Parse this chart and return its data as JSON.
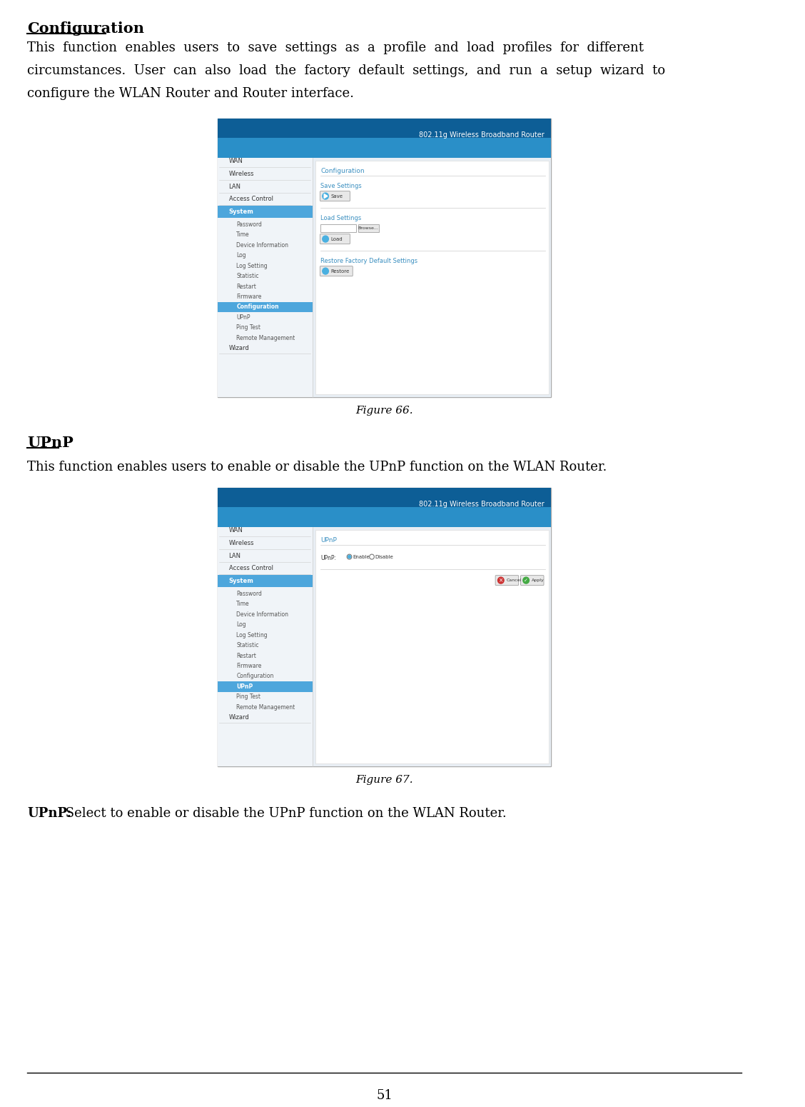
{
  "title": "Configuration",
  "para1_lines": [
    "This  function  enables  users  to  save  settings  as  a  profile  and  load  profiles  for  different",
    "circumstances.  User  can  also  load  the  factory  default  settings,  and  run  a  setup  wizard  to",
    "configure the WLAN Router and Router interface."
  ],
  "figure66_caption": "Figure 66.",
  "upnp_heading": "UPnP",
  "para2": "This function enables users to enable or disable the UPnP function on the WLAN Router.",
  "figure67_caption": "Figure 67.",
  "upnp_desc_bold": "UPnP:",
  "upnp_desc_rest": " Select to enable or disable the UPnP function on the WLAN Router.",
  "page_number": "51",
  "header_blue_dark": "#1a6fa8",
  "header_blue_light": "#4ab0e0",
  "sidebar_blue": "#4da6dc",
  "content_bg": "#e8eef4",
  "nav_items": [
    "WAN",
    "Wireless",
    "LAN",
    "Access Control",
    "System"
  ],
  "sub_nav_items": [
    "Password",
    "Time",
    "Device Information",
    "Log",
    "Log Setting",
    "Statistic",
    "Restart",
    "Firmware",
    "Configuration",
    "UPnP",
    "Ping Test",
    "Remote Management"
  ],
  "wizard_item": "Wizard",
  "active_main": "System",
  "active_sub_fig66": "Configuration",
  "active_sub_fig67": "UPnP",
  "router_text": "802.11g Wireless Broadband Router"
}
